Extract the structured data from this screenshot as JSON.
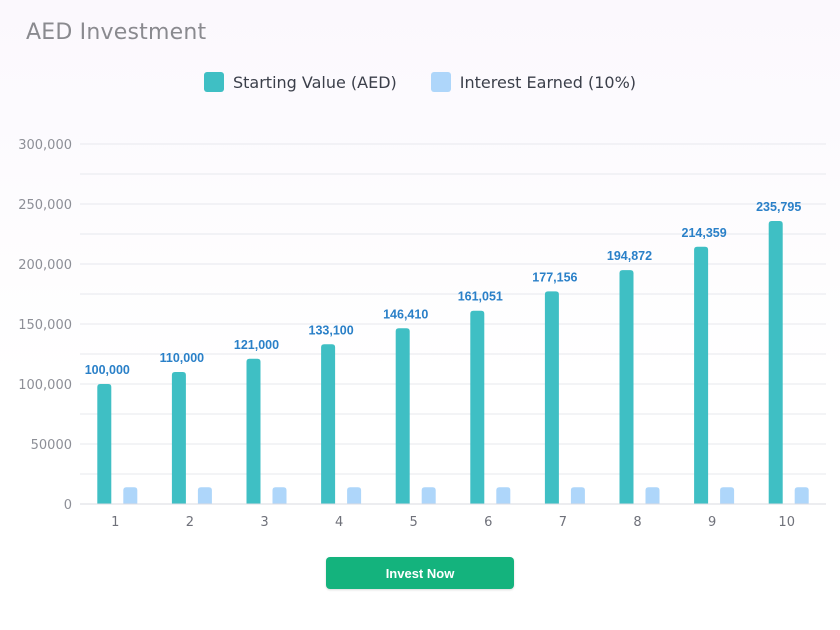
{
  "title": "AED Investment",
  "button": {
    "label": "Invest Now"
  },
  "colors": {
    "starting": "#3fbfc4",
    "interest": "#aed6fa",
    "data_label": "#2a80c8",
    "button": "#14b37d"
  },
  "chart_data": {
    "type": "bar",
    "title": "AED Investment",
    "categories": [
      "1",
      "2",
      "3",
      "4",
      "5",
      "6",
      "7",
      "8",
      "9",
      "10"
    ],
    "series": [
      {
        "name": "Starting Value (AED)",
        "values": [
          100000,
          110000,
          121000,
          133100,
          146410,
          161051,
          177156,
          194872,
          214359,
          235795
        ],
        "labels": [
          "100,000",
          "110,000",
          "121,000",
          "133,100",
          "146,410",
          "161,051",
          "177,156",
          "194,872",
          "214,359",
          "235,795"
        ]
      },
      {
        "name": "Interest Earned (10%)",
        "values": [
          14000,
          14000,
          14000,
          14000,
          14000,
          14000,
          14000,
          14000,
          14000,
          14000
        ]
      }
    ],
    "y_ticks": [
      {
        "value": 0,
        "label": "0"
      },
      {
        "value": 50000,
        "label": "50000"
      },
      {
        "value": 100000,
        "label": "100,000"
      },
      {
        "value": 150000,
        "label": "150,000"
      },
      {
        "value": 200000,
        "label": "200,000"
      },
      {
        "value": 250000,
        "label": "250,000"
      },
      {
        "value": 300000,
        "label": "300,000"
      }
    ],
    "ylim": [
      0,
      300000
    ],
    "grid": true,
    "legend_position": "top-center"
  }
}
